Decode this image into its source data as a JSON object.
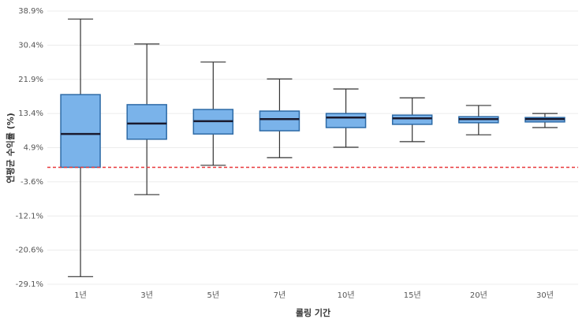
{
  "chart_data": {
    "type": "box",
    "x_label": "롤링 기간",
    "y_label": "연평균 수익률 (%)",
    "categories": [
      "1년",
      "3년",
      "5년",
      "7년",
      "10년",
      "15년",
      "20년",
      "30년"
    ],
    "max": [
      36.9,
      30.7,
      26.2,
      22.0,
      19.5,
      17.3,
      15.4,
      13.4
    ],
    "q3": [
      18.1,
      15.6,
      14.4,
      14.0,
      13.4,
      13.0,
      12.6,
      12.4
    ],
    "median": [
      8.3,
      10.9,
      11.5,
      12.0,
      12.4,
      12.2,
      12.0,
      12.0
    ],
    "q1": [
      0.0,
      7.0,
      8.3,
      9.1,
      9.9,
      10.7,
      11.1,
      11.3
    ],
    "min": [
      -27.2,
      -6.8,
      0.5,
      2.4,
      5.0,
      6.4,
      8.1,
      9.9
    ],
    "box_color": "#7ab3ea",
    "edge_color": "#2d6aa6",
    "reference_line": 0,
    "reference_color": "#e8383a",
    "ylim": [
      -29.1,
      38.9
    ],
    "yticks": [
      {
        "value": -29.1,
        "label": "-29.1%"
      },
      {
        "value": -20.6,
        "label": "-20.6%"
      },
      {
        "value": -12.1,
        "label": "-12.1%"
      },
      {
        "value": -3.6,
        "label": "-3.6%"
      },
      {
        "value": 4.9,
        "label": "4.9%"
      },
      {
        "value": 13.4,
        "label": "13.4%"
      },
      {
        "value": 21.9,
        "label": "21.9%"
      },
      {
        "value": 30.4,
        "label": "30.4%"
      },
      {
        "value": 38.9,
        "label": "38.9%"
      }
    ],
    "grid": true
  }
}
